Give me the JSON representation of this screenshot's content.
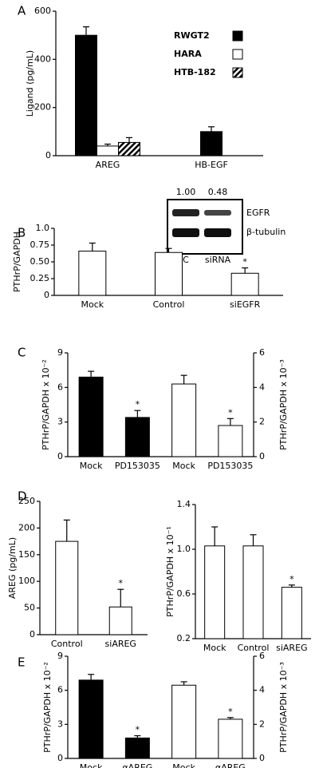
{
  "chart_data": [
    {
      "type": "bar",
      "panel": "A",
      "ylabel": "Ligand (pg/mL)",
      "categories": [
        "AREG",
        "HB-EGF"
      ],
      "ylim": [
        0,
        600
      ],
      "yticks": [
        0,
        200,
        400,
        600
      ],
      "legend": "upper right",
      "series": [
        {
          "name": "RWGT2",
          "color": "#000000",
          "values": [
            500,
            100
          ],
          "errors": [
            35,
            20
          ]
        },
        {
          "name": "HARA",
          "color": "#ffffff",
          "values": [
            40,
            null
          ],
          "errors": [
            8,
            null
          ]
        },
        {
          "name": "HTB-182",
          "color": "#000000",
          "hatch": true,
          "values": [
            55,
            null
          ],
          "errors": [
            20,
            null
          ]
        }
      ]
    },
    {
      "type": "bar",
      "panel": "B",
      "ylabel": "PTHrP/GAPDH",
      "categories": [
        "Mock",
        "Control",
        "siEGFR"
      ],
      "ylim": [
        0,
        1
      ],
      "yticks": [
        0,
        0.25,
        {
          "value": 0.5,
          "label": "0.50"
        },
        0.75,
        {
          "value": 1,
          "label": "1.0"
        }
      ],
      "series": [
        {
          "color": "#ffffff",
          "values": [
            0.66,
            0.64,
            0.33
          ],
          "errors": [
            0.12,
            0.06,
            0.08
          ],
          "marks": [
            null,
            null,
            "*"
          ]
        }
      ],
      "inset": {
        "values": [
          "1.00",
          "0.48"
        ],
        "bands": [
          "EGFR",
          "β-tubulin"
        ],
        "lanes": [
          "C",
          "siRNA"
        ]
      }
    },
    {
      "type": "bar",
      "panel": "C",
      "ylabel": "PTHrP/GAPDH x 10⁻²",
      "y2label": "PTHrP/GAPDH x 10⁻³",
      "categories": [
        "Mock",
        "PD153035",
        "Mock",
        "PD153035"
      ],
      "ylim": [
        0,
        9
      ],
      "yticks": [
        0,
        3,
        6,
        9
      ],
      "y2lim": [
        0,
        6
      ],
      "y2ticks": [
        0,
        2,
        4,
        6
      ],
      "series": [
        {
          "color": "#000000",
          "values": [
            6.9,
            3.4,
            null,
            null
          ],
          "errors": [
            0.5,
            0.6,
            null,
            null
          ],
          "marks": [
            null,
            "*",
            null,
            null
          ]
        },
        {
          "color": "#ffffff",
          "axis": "y2",
          "values": [
            null,
            null,
            4.2,
            1.8
          ],
          "errors": [
            null,
            null,
            0.5,
            0.4
          ],
          "marks": [
            null,
            null,
            null,
            "*"
          ]
        }
      ]
    },
    {
      "type": "bar",
      "panel": "D",
      "ylabel": "AREG (pg/mL)",
      "categories": [
        "Control",
        "siAREG"
      ],
      "ylim": [
        0,
        250
      ],
      "yticks": [
        0,
        50,
        100,
        150,
        200,
        250
      ],
      "series": [
        {
          "color": "#ffffff",
          "values": [
            175,
            52
          ],
          "errors": [
            40,
            33
          ],
          "marks": [
            null,
            "*"
          ]
        }
      ]
    },
    {
      "type": "bar",
      "ylabel": "PTHrP/GAPDH x 10⁻¹",
      "categories": [
        "Mock",
        "Control",
        "siAREG"
      ],
      "ylim": [
        0.2,
        1.4
      ],
      "yticks": [
        0.2,
        0.6,
        {
          "value": 1,
          "label": "1.0"
        },
        1.4
      ],
      "series": [
        {
          "color": "#ffffff",
          "values": [
            1.03,
            1.03,
            0.66
          ],
          "errors": [
            0.17,
            0.1,
            0.02
          ],
          "marks": [
            null,
            null,
            "*"
          ]
        }
      ]
    },
    {
      "type": "bar",
      "panel": "E",
      "ylabel": "PTHrP/GAPDH x 10⁻²",
      "y2label": "PTHrP/GAPDH x 10⁻³",
      "categories": [
        "Mock",
        "αAREG",
        "Mock",
        "αAREG"
      ],
      "ylim": [
        0,
        9
      ],
      "yticks": [
        0,
        3,
        6,
        9
      ],
      "y2lim": [
        0,
        6
      ],
      "y2ticks": [
        0,
        2,
        4,
        6
      ],
      "series": [
        {
          "color": "#000000",
          "values": [
            6.9,
            1.8,
            null,
            null
          ],
          "errors": [
            0.5,
            0.2,
            null,
            null
          ],
          "marks": [
            null,
            "*",
            null,
            null
          ]
        },
        {
          "color": "#ffffff",
          "axis": "y2",
          "values": [
            null,
            null,
            4.3,
            2.3
          ],
          "errors": [
            null,
            null,
            0.2,
            0.1
          ],
          "marks": [
            null,
            null,
            null,
            "*"
          ]
        }
      ]
    }
  ]
}
